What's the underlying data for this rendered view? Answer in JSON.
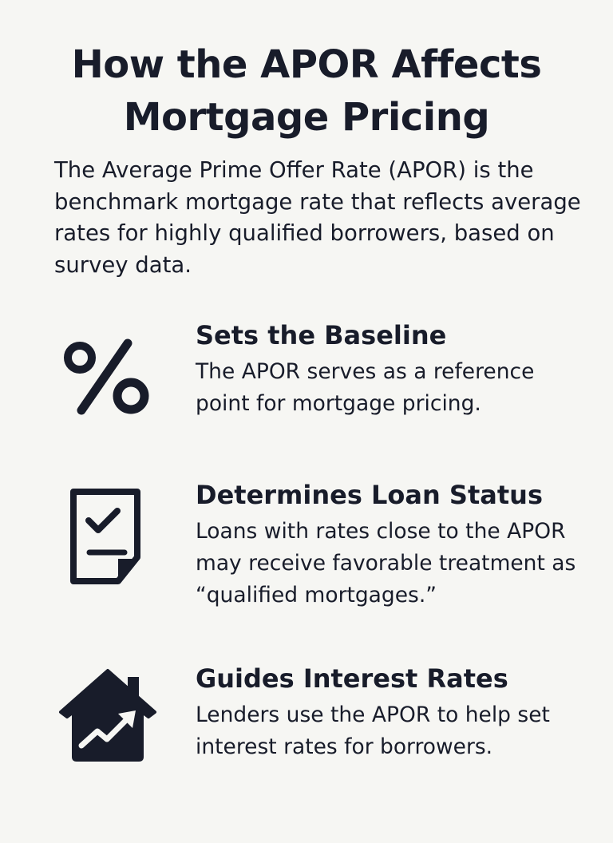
{
  "title": "How the APOR Affects Mortgage Pricing",
  "title_lines": [
    "How the APOR Affects",
    "Mortgage Pricing"
  ],
  "intro": "The Average Prime Offer Rate (APOR) is the benchmark mortgage rate that reflects average rates for highly qualified borrowers, based on survey data.",
  "colors": {
    "background": "#f6f6f3",
    "ink": "#181c2a"
  },
  "items": [
    {
      "icon": "percent-icon",
      "heading": "Sets the Baseline",
      "body": "The APOR serves as a reference point for mortgage pricing."
    },
    {
      "icon": "document-check-icon",
      "heading": "Determines Loan Status",
      "body": "Loans with rates close to the APOR may receive favorable treatment as “qualified mortgages.”"
    },
    {
      "icon": "house-trend-up-icon",
      "heading": "Guides Interest Rates",
      "body": "Lenders use the APOR to help set interest rates for borrowers."
    }
  ]
}
